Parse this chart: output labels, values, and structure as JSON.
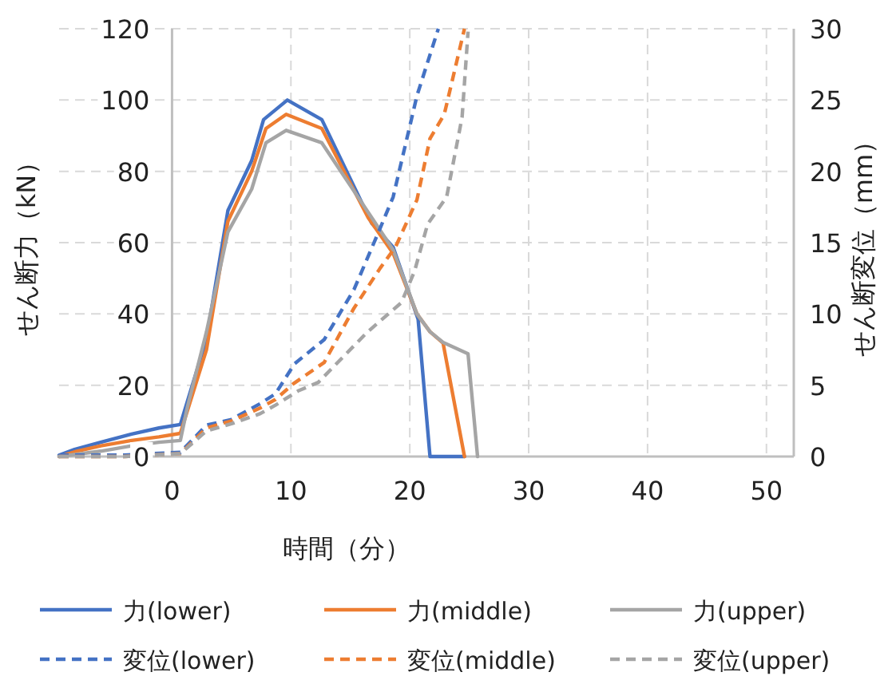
{
  "chart_data": {
    "type": "line",
    "xlabel": "時間（分）",
    "ylabel": "せん断力（kN）",
    "y2label": "せん断変位（mm）",
    "xlim": [
      -9.5,
      52.3
    ],
    "xticks": [
      0,
      10,
      20,
      30,
      40,
      50
    ],
    "ylim": [
      0,
      120
    ],
    "yticks": [
      0,
      20,
      40,
      60,
      80,
      100,
      120
    ],
    "y2lim": [
      0,
      30
    ],
    "y2ticks": [
      0,
      5,
      10,
      15,
      20,
      25,
      30
    ],
    "grid": true,
    "legend": "bottom",
    "marker": "none",
    "series": [
      {
        "name": "力(lower)",
        "color": "#4472c4",
        "line_style": "solid",
        "x": [
          -9.5,
          -8.2,
          -6,
          -3.4,
          -1.1,
          0.7,
          2.9,
          4.7,
          6.7,
          7.7,
          9.7,
          12.6,
          16.8,
          18.6,
          20.7,
          21.7,
          24.6
        ],
        "values": [
          0.4,
          2,
          4,
          6.3,
          8,
          9,
          33,
          69,
          83,
          94.5,
          100,
          94.5,
          65.4,
          58.7,
          38.5,
          0,
          0
        ]
      },
      {
        "name": "力(middle)",
        "color": "#ed7d31",
        "line_style": "solid",
        "x": [
          -9.5,
          -8,
          -6,
          -3.4,
          -1.1,
          0.7,
          2.9,
          4.7,
          6.7,
          7.9,
          9.6,
          12.6,
          16.5,
          18.6,
          20.6,
          21.7,
          22.8,
          24.6
        ],
        "values": [
          0,
          1.5,
          3,
          4.5,
          5.5,
          6.5,
          30,
          66,
          80,
          92,
          96,
          92,
          67,
          57,
          40,
          35,
          31.8,
          0
        ]
      },
      {
        "name": "力(upper)",
        "color": "#a5a5a5",
        "line_style": "solid",
        "x": [
          -9.5,
          -6,
          -3.4,
          -1.1,
          0.7,
          1.3,
          2.9,
          4.7,
          6.7,
          7.9,
          9.6,
          12.6,
          16.8,
          18.6,
          20.6,
          21.7,
          22.8,
          24.9,
          25.7
        ],
        "values": [
          0,
          1.5,
          3,
          4,
          4.5,
          14,
          35,
          63,
          75,
          88,
          91.5,
          88,
          67,
          58,
          40,
          35,
          32,
          28.8,
          0
        ]
      },
      {
        "name": "変位(lower)",
        "color": "#4472c4",
        "line_style": "dashed",
        "axis": "y2",
        "x": [
          -9.5,
          -4,
          0.7,
          2.9,
          5,
          7.4,
          8.7,
          10.3,
          12.8,
          15.3,
          17.3,
          18.6,
          20.6,
          22.4
        ],
        "values": [
          0.1,
          0.1,
          0.3,
          2.2,
          2.6,
          3.7,
          4.4,
          6.5,
          8.2,
          11.7,
          15.6,
          18.2,
          25.3,
          30
        ]
      },
      {
        "name": "変位(middle)",
        "color": "#ed7d31",
        "line_style": "dashed",
        "axis": "y2",
        "x": [
          -9.5,
          -4,
          0.7,
          2.9,
          5,
          7.4,
          8.7,
          10.2,
          12.8,
          15.3,
          17.5,
          18.8,
          20.6,
          21.7,
          22.9,
          24.6
        ],
        "values": [
          0,
          0,
          0.2,
          2,
          2.5,
          3.4,
          4,
          5.1,
          6.6,
          10.4,
          13.2,
          14.7,
          18,
          22.3,
          24,
          30
        ]
      },
      {
        "name": "変位(upper)",
        "color": "#a5a5a5",
        "line_style": "dashed",
        "axis": "y2",
        "x": [
          -9.5,
          -4,
          0.7,
          2.9,
          5,
          7.4,
          8.7,
          10.6,
          12.3,
          16.4,
          19.3,
          20.4,
          21.5,
          23.1,
          24.4,
          24.9
        ],
        "values": [
          0,
          0,
          0.2,
          1.8,
          2.3,
          3,
          3.6,
          4.6,
          5.2,
          8.7,
          10.8,
          13,
          16.3,
          18.2,
          23.8,
          29.8
        ]
      }
    ]
  }
}
